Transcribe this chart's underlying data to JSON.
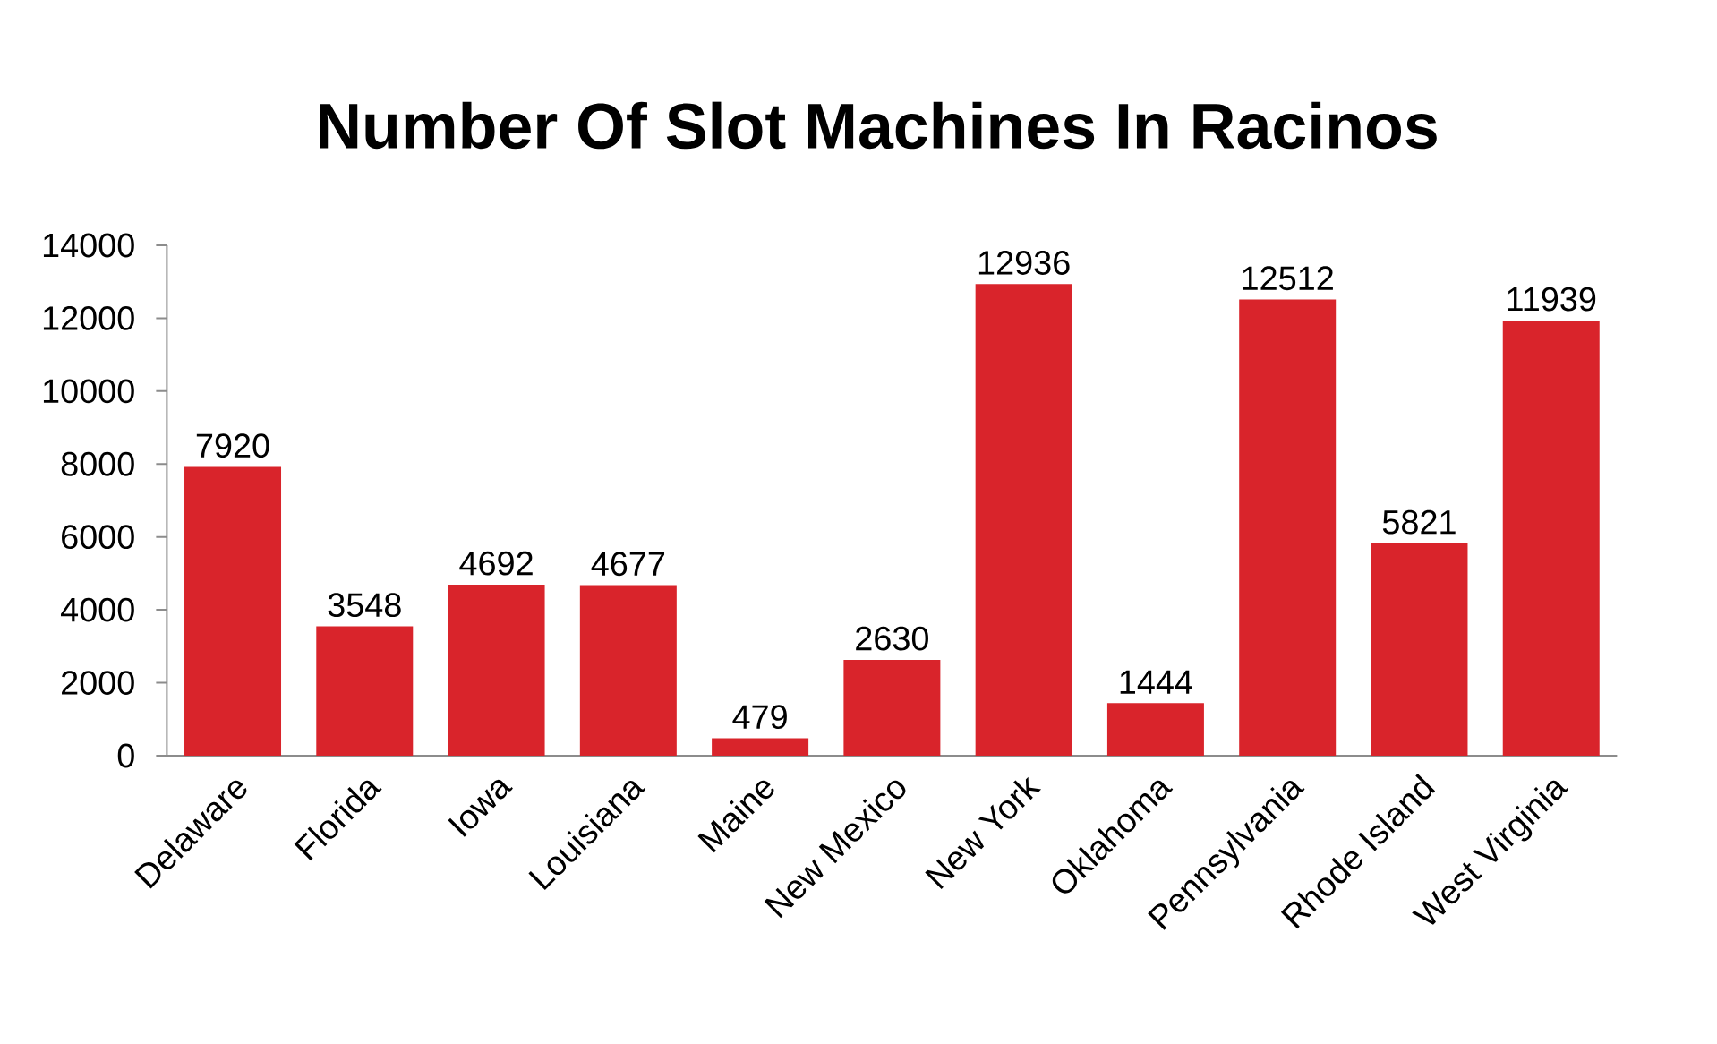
{
  "chart_data": {
    "type": "bar",
    "title": "Number Of Slot Machines In Racinos",
    "categories": [
      "Delaware",
      "Florida",
      "Iowa",
      "Louisiana",
      "Maine",
      "New Mexico",
      "New York",
      "Oklahoma",
      "Pennsylvania",
      "Rhode Island",
      "West Virginia"
    ],
    "values": [
      7920,
      3548,
      4692,
      4677,
      479,
      2630,
      12936,
      1444,
      12512,
      5821,
      11939
    ],
    "color": "#d9242b",
    "ylim": [
      0,
      14000
    ],
    "yticks": [
      0,
      2000,
      4000,
      6000,
      8000,
      10000,
      12000,
      14000
    ],
    "data_labels": true
  }
}
